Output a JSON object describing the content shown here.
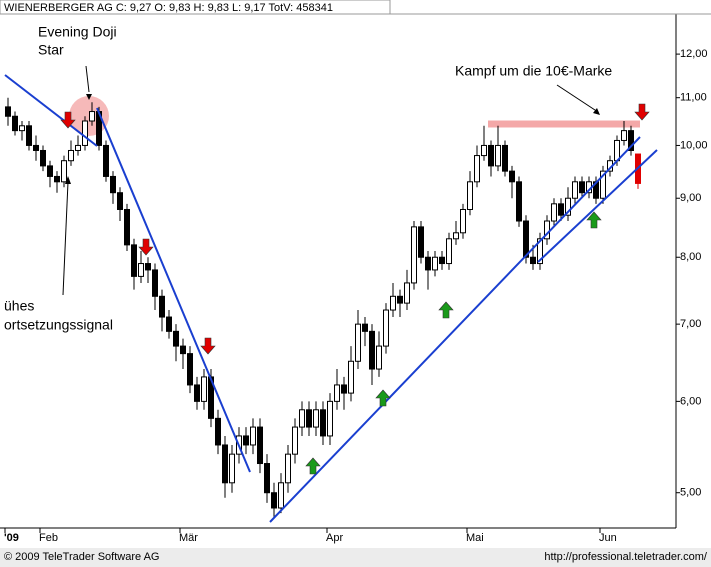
{
  "chart_data": {
    "type": "candlestick",
    "header": "WIENERBERGER AG C: 9,27 O: 9,83 H: 9,83 L: 9,17 TotV: 458341",
    "footer": [
      "© 2009 TeleTrader Software AG",
      "http://professional.teletrader.com/"
    ],
    "annotations": [
      "Evening Doji",
      "Star",
      "Kampf um die 10€-Marke",
      "ühes",
      "ortsetzungssignal"
    ],
    "categories": [
      "'09",
      null,
      null,
      null,
      null,
      "Feb",
      null,
      null,
      null,
      null,
      null,
      null,
      null,
      null,
      null,
      null,
      null,
      null,
      null,
      null,
      null,
      null,
      null,
      null,
      null,
      "Mär",
      null,
      null,
      null,
      null,
      null,
      null,
      null,
      null,
      null,
      null,
      null,
      null,
      null,
      null,
      null,
      null,
      null,
      null,
      null,
      null,
      "Apr",
      null,
      null,
      null,
      null,
      null,
      null,
      null,
      null,
      null,
      null,
      null,
      null,
      null,
      null,
      null,
      null,
      null,
      null,
      null,
      "Mai",
      null,
      null,
      null,
      null,
      null,
      null,
      null,
      null,
      null,
      null,
      null,
      null,
      null,
      null,
      null,
      null,
      null,
      null,
      "Jun",
      null,
      null,
      null,
      null,
      null
    ],
    "open": [
      10.8,
      10.6,
      10.3,
      10.4,
      10.0,
      9.9,
      9.6,
      9.4,
      9.3,
      9.7,
      9.9,
      10.0,
      10.5,
      10.7,
      10.0,
      9.4,
      9.1,
      8.8,
      8.2,
      7.7,
      7.9,
      7.8,
      7.4,
      7.1,
      6.9,
      6.7,
      6.6,
      6.2,
      6.0,
      6.3,
      5.8,
      5.5,
      5.1,
      5.4,
      5.6,
      5.5,
      5.7,
      5.3,
      5.0,
      4.85,
      5.1,
      5.4,
      5.7,
      5.9,
      5.7,
      5.9,
      5.6,
      6.0,
      6.2,
      6.1,
      6.5,
      7.0,
      6.9,
      6.4,
      6.7,
      7.2,
      7.4,
      7.3,
      7.6,
      8.5,
      8.0,
      7.8,
      8.0,
      7.9,
      8.3,
      8.4,
      8.8,
      9.3,
      9.8,
      10.0,
      9.6,
      10.0,
      9.5,
      9.3,
      8.6,
      8.0,
      7.9,
      8.3,
      8.6,
      8.9,
      8.7,
      9.0,
      9.3,
      9.1,
      9.3,
      9.0,
      9.5,
      9.7,
      10.1,
      10.3,
      9.83
    ],
    "high": [
      11.0,
      10.7,
      10.5,
      10.5,
      10.2,
      10.0,
      9.7,
      9.5,
      9.8,
      10.1,
      10.2,
      10.6,
      10.9,
      10.8,
      10.1,
      9.5,
      9.2,
      8.9,
      8.3,
      8.1,
      8.0,
      7.9,
      7.5,
      7.2,
      7.0,
      6.8,
      6.7,
      6.3,
      6.4,
      6.4,
      5.9,
      5.6,
      5.5,
      5.7,
      5.7,
      5.8,
      5.8,
      5.4,
      5.1,
      5.2,
      5.5,
      5.8,
      6.0,
      6.0,
      6.0,
      6.0,
      6.1,
      6.4,
      6.3,
      6.7,
      7.2,
      7.1,
      7.0,
      6.9,
      7.3,
      7.6,
      7.5,
      7.8,
      8.6,
      8.6,
      8.1,
      8.1,
      8.1,
      8.4,
      8.6,
      8.9,
      9.5,
      10.0,
      10.4,
      10.1,
      10.4,
      10.1,
      9.6,
      9.4,
      8.7,
      8.2,
      8.4,
      8.7,
      9.0,
      9.0,
      9.2,
      9.4,
      9.4,
      9.4,
      9.4,
      9.6,
      9.8,
      10.2,
      10.5,
      10.4,
      9.83
    ],
    "low": [
      10.4,
      10.2,
      10.1,
      9.9,
      9.7,
      9.5,
      9.2,
      9.1,
      9.2,
      9.6,
      9.8,
      9.9,
      10.4,
      9.9,
      9.3,
      8.9,
      8.6,
      8.1,
      7.5,
      7.6,
      7.6,
      7.2,
      6.9,
      6.8,
      6.5,
      6.4,
      6.1,
      5.9,
      5.9,
      5.7,
      5.4,
      4.95,
      5.0,
      5.3,
      5.4,
      5.4,
      5.2,
      4.9,
      4.75,
      4.8,
      5.0,
      5.3,
      5.6,
      5.6,
      5.6,
      5.5,
      5.5,
      5.9,
      5.9,
      6.0,
      6.4,
      6.7,
      6.2,
      6.3,
      6.6,
      7.1,
      7.1,
      7.2,
      7.5,
      7.9,
      7.5,
      7.7,
      7.8,
      7.8,
      8.2,
      8.3,
      8.7,
      9.2,
      9.7,
      9.4,
      9.5,
      9.4,
      9.0,
      8.5,
      7.9,
      7.8,
      7.8,
      8.2,
      8.5,
      8.6,
      8.6,
      8.9,
      9.0,
      9.0,
      8.9,
      8.9,
      9.4,
      9.6,
      10.0,
      9.8,
      9.17
    ],
    "close": [
      10.6,
      10.3,
      10.4,
      10.0,
      9.9,
      9.6,
      9.4,
      9.3,
      9.7,
      9.9,
      10.0,
      10.5,
      10.7,
      10.0,
      9.4,
      9.1,
      8.8,
      8.2,
      7.7,
      7.9,
      7.8,
      7.4,
      7.1,
      6.9,
      6.7,
      6.6,
      6.2,
      6.0,
      6.3,
      5.8,
      5.5,
      5.1,
      5.4,
      5.6,
      5.5,
      5.7,
      5.3,
      5.0,
      4.85,
      5.1,
      5.4,
      5.7,
      5.9,
      5.7,
      5.9,
      5.6,
      6.0,
      6.2,
      6.1,
      6.5,
      7.0,
      6.9,
      6.4,
      6.7,
      7.2,
      7.4,
      7.3,
      7.6,
      8.5,
      8.0,
      7.8,
      8.0,
      7.9,
      8.3,
      8.4,
      8.8,
      9.3,
      9.8,
      10.0,
      9.6,
      10.0,
      9.5,
      9.3,
      8.6,
      8.0,
      7.9,
      8.3,
      8.6,
      8.9,
      8.7,
      9.0,
      9.3,
      9.1,
      9.3,
      9.0,
      9.5,
      9.7,
      10.1,
      10.3,
      9.9,
      9.27
    ],
    "up_color": "#ffffff",
    "down_color": "#000000",
    "last_color": "#e00000",
    "log_y": true,
    "ylim": [
      4.66,
      13.0
    ],
    "yticks": [
      {
        "value": 5,
        "label": "5,00"
      },
      {
        "value": 6,
        "label": "6,00"
      },
      {
        "value": 7,
        "label": "7,00"
      },
      {
        "value": 8,
        "label": "8,00"
      },
      {
        "value": 9,
        "label": "9,00"
      },
      {
        "value": 10,
        "label": "10,00"
      },
      {
        "value": 11,
        "label": "11,00"
      },
      {
        "value": 12,
        "label": "12,00"
      }
    ]
  }
}
